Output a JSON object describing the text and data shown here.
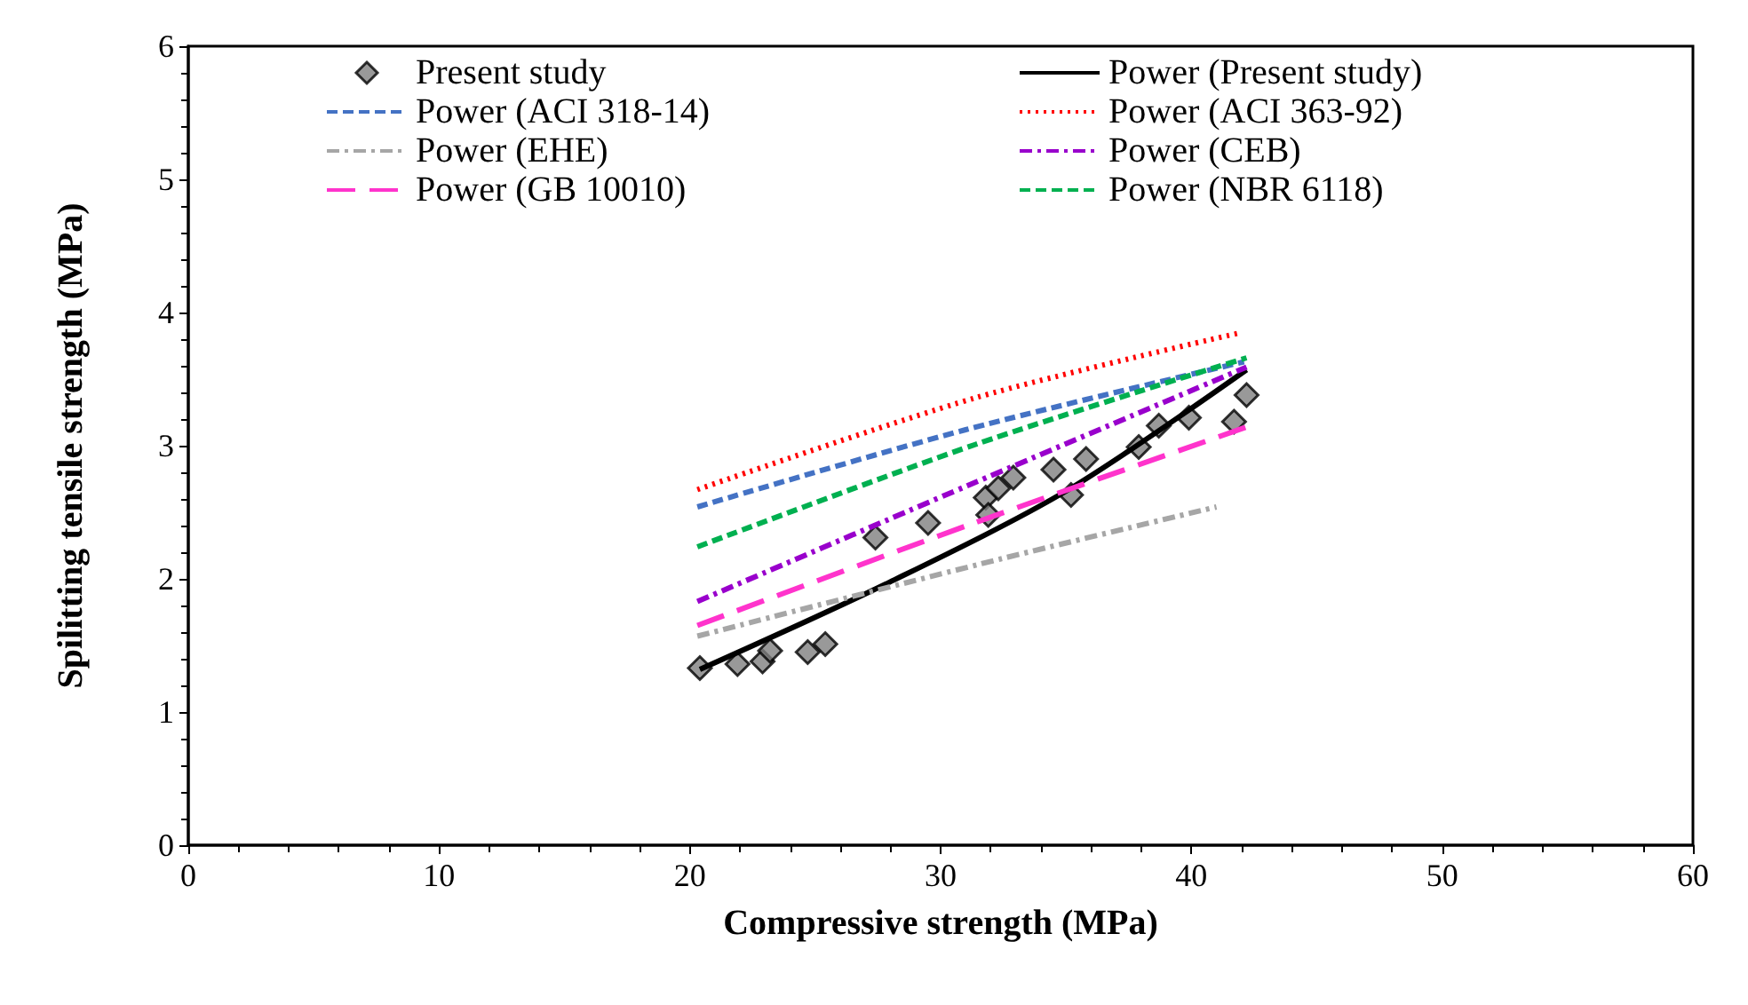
{
  "chart_data": {
    "type": "scatter",
    "xlabel": "Compressive strength (MPa)",
    "ylabel": "Spilitting tensile strength (MPa)",
    "xlim": [
      0,
      60
    ],
    "xticks": [
      0,
      10,
      20,
      30,
      40,
      50,
      60
    ],
    "ylim": [
      0,
      6
    ],
    "yticks": [
      0,
      1,
      2,
      3,
      4,
      5,
      6
    ],
    "grid": false,
    "legend": "top",
    "series": [
      {
        "name": "Present study",
        "marker": "diamond",
        "color": "#808080",
        "x": [
          20.4,
          21.9,
          22.9,
          23.2,
          24.7,
          25.4,
          27.4,
          29.5,
          31.8,
          31.9,
          32.3,
          32.9,
          34.5,
          35.2,
          35.8,
          37.9,
          38.7,
          39.9,
          41.7,
          42.2
        ],
        "values": [
          1.33,
          1.36,
          1.38,
          1.46,
          1.45,
          1.51,
          2.31,
          2.42,
          2.61,
          2.48,
          2.68,
          2.76,
          2.82,
          2.63,
          2.9,
          2.99,
          3.15,
          3.21,
          3.18,
          3.38
        ]
      },
      {
        "name": "Power (Present study)",
        "type": "line",
        "line_style": "solid",
        "color": "#000000",
        "x": [
          20.4,
          27.8,
          35.1,
          42.2
        ],
        "values": [
          1.32,
          1.96,
          2.67,
          3.57
        ]
      },
      {
        "name": "Power (ACI 318-14)",
        "type": "line",
        "line_style": "dashed",
        "color": "#4472c4",
        "x": [
          20.3,
          31.0,
          42.1
        ],
        "values": [
          2.54,
          3.12,
          3.63
        ]
      },
      {
        "name": "Power (ACI 363-92)",
        "type": "line",
        "line_style": "dotted",
        "color": "#ff0000",
        "x": [
          20.3,
          31.4,
          42.0
        ],
        "values": [
          2.67,
          3.36,
          3.85
        ]
      },
      {
        "name": "Power (EHE)",
        "type": "line",
        "line_style": "dashdot",
        "color": "#a6a6a6",
        "x": [
          20.3,
          32.4,
          41.0
        ],
        "values": [
          1.57,
          2.15,
          2.54
        ]
      },
      {
        "name": "Power (CEB)",
        "type": "line",
        "line_style": "dashdot",
        "color": "#9900cc",
        "x": [
          20.3,
          31.2,
          42.2
        ],
        "values": [
          1.83,
          2.71,
          3.59
        ]
      },
      {
        "name": "Power (GB 10010)",
        "type": "line",
        "line_style": "longdash",
        "color": "#ff33cc",
        "x": [
          20.3,
          31.2,
          42.2
        ],
        "values": [
          1.65,
          2.41,
          3.14
        ]
      },
      {
        "name": "Power (NBR 6118)",
        "type": "line",
        "line_style": "dashed",
        "color": "#00b050",
        "x": [
          20.3,
          31.4,
          42.2
        ],
        "values": [
          2.24,
          3.01,
          3.66
        ]
      }
    ]
  }
}
